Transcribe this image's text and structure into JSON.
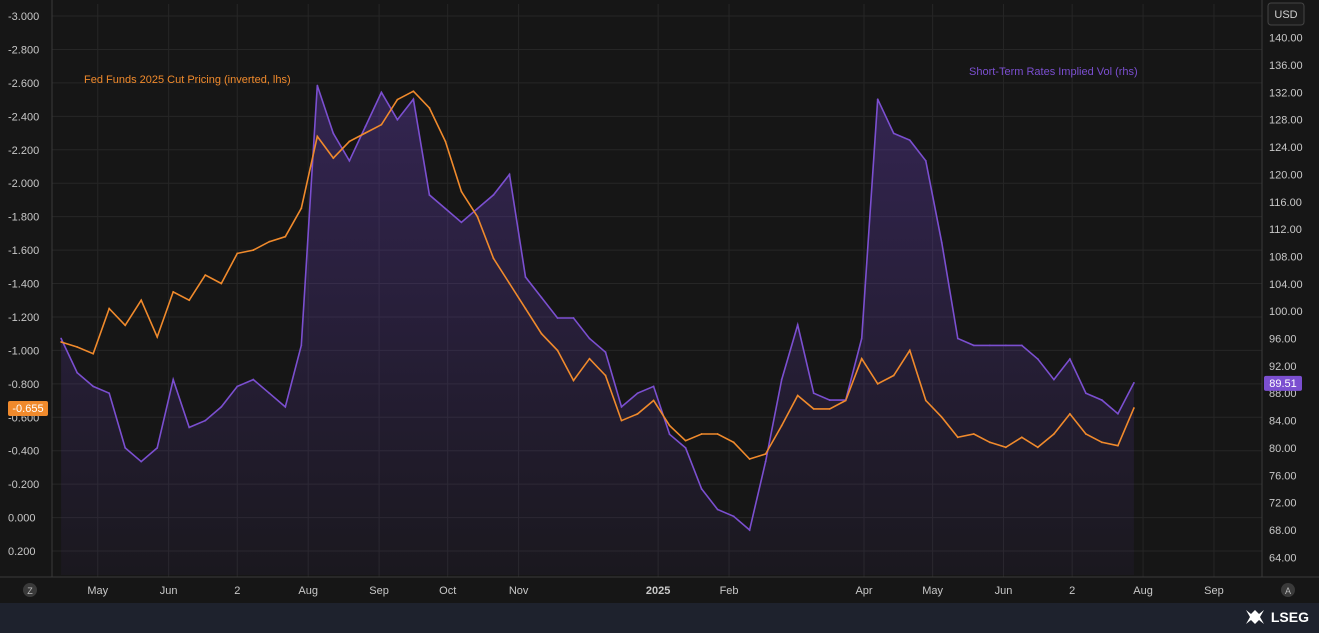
{
  "chart_data": {
    "type": "line",
    "x": [
      "2024-04-15",
      "2024-04-22",
      "2024-04-29",
      "2024-05-06",
      "2024-05-13",
      "2024-05-20",
      "2024-05-27",
      "2024-06-03",
      "2024-06-10",
      "2024-06-17",
      "2024-06-24",
      "2024-07-01",
      "2024-07-08",
      "2024-07-15",
      "2024-07-22",
      "2024-07-29",
      "2024-08-05",
      "2024-08-12",
      "2024-08-19",
      "2024-08-26",
      "2024-09-02",
      "2024-09-09",
      "2024-09-16",
      "2024-09-23",
      "2024-09-30",
      "2024-10-07",
      "2024-10-14",
      "2024-10-21",
      "2024-10-28",
      "2024-11-04",
      "2024-11-11",
      "2024-11-18",
      "2024-11-25",
      "2024-12-02",
      "2024-12-09",
      "2024-12-16",
      "2024-12-23",
      "2024-12-30",
      "2025-01-06",
      "2025-01-13",
      "2025-01-20",
      "2025-01-27",
      "2025-02-03",
      "2025-02-10",
      "2025-02-17",
      "2025-02-24",
      "2025-03-03",
      "2025-03-10",
      "2025-03-17",
      "2025-03-24",
      "2025-03-31",
      "2025-04-07",
      "2025-04-14",
      "2025-04-21",
      "2025-04-28",
      "2025-05-05",
      "2025-05-12",
      "2025-05-19",
      "2025-05-26",
      "2025-06-02",
      "2025-06-09",
      "2025-06-16",
      "2025-06-23",
      "2025-06-30",
      "2025-07-07",
      "2025-07-14",
      "2025-07-21",
      "2025-07-28"
    ],
    "series": [
      {
        "name": "Fed Funds 2025 Cut Pricing (inverted, lhs)",
        "axis": "left",
        "color": "#f08a2c",
        "values": [
          -1.05,
          -1.02,
          -0.98,
          -1.25,
          -1.15,
          -1.3,
          -1.08,
          -1.35,
          -1.3,
          -1.45,
          -1.4,
          -1.58,
          -1.6,
          -1.65,
          -1.68,
          -1.85,
          -2.28,
          -2.15,
          -2.25,
          -2.3,
          -2.35,
          -2.5,
          -2.55,
          -2.45,
          -2.25,
          -1.95,
          -1.8,
          -1.55,
          -1.4,
          -1.25,
          -1.1,
          -1.0,
          -0.82,
          -0.95,
          -0.85,
          -0.58,
          -0.62,
          -0.7,
          -0.55,
          -0.46,
          -0.5,
          -0.5,
          -0.45,
          -0.35,
          -0.38,
          -0.55,
          -0.73,
          -0.65,
          -0.65,
          -0.7,
          -0.95,
          -0.8,
          -0.85,
          -1.0,
          -0.7,
          -0.6,
          -0.48,
          -0.5,
          -0.45,
          -0.42,
          -0.48,
          -0.42,
          -0.5,
          -0.62,
          -0.5,
          -0.45,
          -0.43,
          -0.655
        ]
      },
      {
        "name": "Short-Term Rates Implied Vol (rhs)",
        "axis": "right",
        "color": "#7b4fd0",
        "values": [
          96.0,
          91.0,
          89.0,
          88.0,
          80.0,
          78.0,
          80.0,
          90.0,
          83.0,
          84.0,
          86.0,
          89.0,
          90.0,
          88.0,
          86.0,
          95.0,
          133.0,
          126.0,
          122.0,
          127.0,
          132.0,
          128.0,
          131.0,
          117.0,
          115.0,
          113.0,
          115.0,
          117.0,
          120.0,
          105.0,
          102.0,
          99.0,
          99.0,
          96.0,
          94.0,
          86.0,
          88.0,
          89.0,
          82.0,
          80.0,
          74.0,
          71.0,
          70.0,
          68.0,
          78.0,
          90.0,
          98.0,
          88.0,
          87.0,
          87.0,
          96.0,
          131.0,
          126.0,
          125.0,
          122.0,
          110.0,
          96.0,
          95.0,
          95.0,
          95.0,
          95.0,
          93.0,
          90.0,
          93.0,
          88.0,
          87.0,
          85.0,
          89.51
        ]
      }
    ],
    "y_left": {
      "ticks": [
        "-3.000",
        "-2.800",
        "-2.600",
        "-2.400",
        "-2.200",
        "-2.000",
        "-1.800",
        "-1.600",
        "-1.400",
        "-1.200",
        "-1.000",
        "-0.800",
        "-0.600",
        "-0.400",
        "-0.200",
        "0.000",
        "0.200"
      ],
      "range": [
        -3.0,
        0.2
      ],
      "inverted": true
    },
    "y_right": {
      "unit": "USD",
      "ticks": [
        "140.00",
        "136.00",
        "132.00",
        "128.00",
        "124.00",
        "120.00",
        "116.00",
        "112.00",
        "108.00",
        "104.00",
        "100.00",
        "96.00",
        "92.00",
        "88.00",
        "84.00",
        "80.00",
        "76.00",
        "72.00",
        "68.00",
        "64.00"
      ],
      "range": [
        62.0,
        142.0
      ]
    },
    "x_ticks": [
      {
        "date": "2024-05-01",
        "label": "May"
      },
      {
        "date": "2024-06-01",
        "label": "Jun"
      },
      {
        "date": "2024-07-01",
        "label": "2"
      },
      {
        "date": "2024-08-01",
        "label": "Aug"
      },
      {
        "date": "2024-09-01",
        "label": "Sep"
      },
      {
        "date": "2024-10-01",
        "label": "Oct"
      },
      {
        "date": "2024-11-01",
        "label": "Nov"
      },
      {
        "date": "2025-01-01",
        "label": "2025"
      },
      {
        "date": "2025-02-01",
        "label": "Feb"
      },
      {
        "date": "2025-04-01",
        "label": "Apr"
      },
      {
        "date": "2025-05-01",
        "label": "May"
      },
      {
        "date": "2025-06-01",
        "label": "Jun"
      },
      {
        "date": "2025-07-01",
        "label": "2"
      },
      {
        "date": "2025-08-01",
        "label": "Aug"
      },
      {
        "date": "2025-09-01",
        "label": "Sep"
      }
    ],
    "x_range": [
      "2024-04-11",
      "2025-09-22"
    ],
    "last_values": {
      "left": "-0.655",
      "right": "89.51"
    },
    "grid": true,
    "legend": [
      {
        "text": "Fed Funds 2025 Cut Pricing (inverted, lhs)",
        "placement": "top-left",
        "color": "#f08a2c"
      },
      {
        "text": "Short-Term Rates Implied Vol (rhs)",
        "placement": "top-right",
        "color": "#7b4fd0"
      }
    ]
  },
  "ui": {
    "corner_left": "Z",
    "corner_right": "A",
    "brand": "LSEG"
  },
  "colors": {
    "background": "#161616",
    "grid": "#2a2a2a",
    "axis_text": "#c8c8c8",
    "orange": "#f08a2c",
    "purple": "#7b4fd0"
  }
}
